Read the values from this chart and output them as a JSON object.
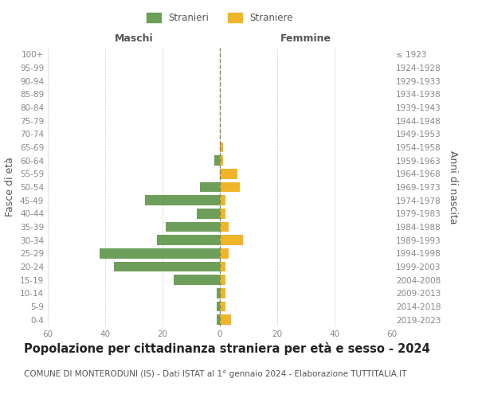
{
  "age_groups": [
    "0-4",
    "5-9",
    "10-14",
    "15-19",
    "20-24",
    "25-29",
    "30-34",
    "35-39",
    "40-44",
    "45-49",
    "50-54",
    "55-59",
    "60-64",
    "65-69",
    "70-74",
    "75-79",
    "80-84",
    "85-89",
    "90-94",
    "95-99",
    "100+"
  ],
  "birth_years": [
    "2019-2023",
    "2014-2018",
    "2009-2013",
    "2004-2008",
    "1999-2003",
    "1994-1998",
    "1989-1993",
    "1984-1988",
    "1979-1983",
    "1974-1978",
    "1969-1973",
    "1964-1968",
    "1959-1963",
    "1954-1958",
    "1949-1953",
    "1944-1948",
    "1939-1943",
    "1934-1938",
    "1929-1933",
    "1924-1928",
    "≤ 1923"
  ],
  "males": [
    1,
    1,
    1,
    16,
    37,
    42,
    22,
    19,
    8,
    26,
    7,
    0,
    2,
    0,
    0,
    0,
    0,
    0,
    0,
    0,
    0
  ],
  "females": [
    4,
    2,
    2,
    2,
    2,
    3,
    8,
    3,
    2,
    2,
    7,
    6,
    1,
    1,
    0,
    0,
    0,
    0,
    0,
    0,
    0
  ],
  "male_color": "#6d9e5a",
  "female_color": "#f0b429",
  "center_line_color": "#888855",
  "grid_color": "#cccccc",
  "background_color": "#ffffff",
  "title": "Popolazione per cittadinanza straniera per età e sesso - 2024",
  "subtitle": "COMUNE DI MONTERODUNI (IS) - Dati ISTAT al 1° gennaio 2024 - Elaborazione TUTTITALIA.IT",
  "ylabel_left": "Fasce di età",
  "ylabel_right": "Anni di nascita",
  "xlabel_left": "Maschi",
  "xlabel_right": "Femmine",
  "legend_stranieri": "Stranieri",
  "legend_straniere": "Straniere",
  "xlim": 60,
  "title_fontsize": 10.5,
  "subtitle_fontsize": 7.5,
  "tick_fontsize": 7.5,
  "label_fontsize": 9
}
